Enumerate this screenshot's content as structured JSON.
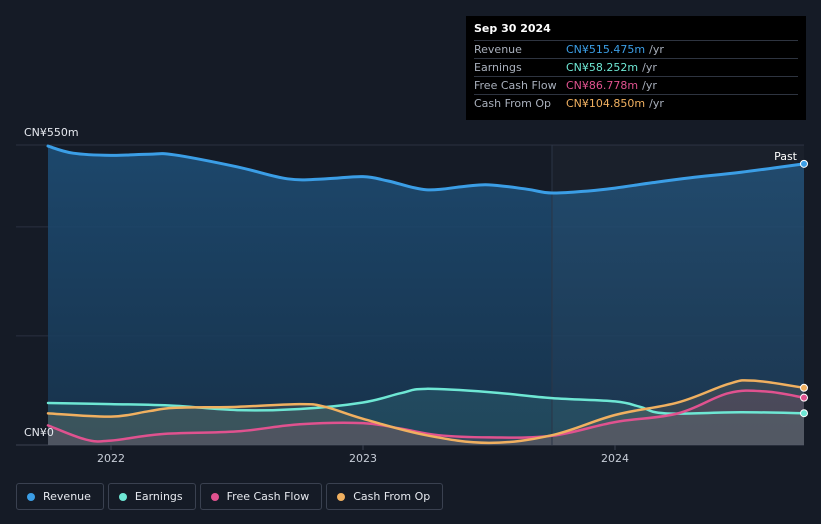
{
  "tooltip": {
    "date": "Sep 30 2024",
    "rows": [
      {
        "label": "Revenue",
        "value": "CN¥515.475m",
        "unit": "/yr",
        "color": "#3b9ee6"
      },
      {
        "label": "Earnings",
        "value": "CN¥58.252m",
        "unit": "/yr",
        "color": "#6ee7d4"
      },
      {
        "label": "Free Cash Flow",
        "value": "CN¥86.778m",
        "unit": "/yr",
        "color": "#e0528f"
      },
      {
        "label": "Cash From Op",
        "value": "CN¥104.850m",
        "unit": "/yr",
        "color": "#f0b060"
      }
    ]
  },
  "past_label": "Past",
  "legend": [
    {
      "label": "Revenue",
      "color": "#3b9ee6"
    },
    {
      "label": "Earnings",
      "color": "#6ee7d4"
    },
    {
      "label": "Free Cash Flow",
      "color": "#e0528f"
    },
    {
      "label": "Cash From Op",
      "color": "#f0b060"
    }
  ],
  "chart_data": {
    "type": "line",
    "y_tick_labels": [
      "CN¥550m",
      "CN¥0"
    ],
    "ylim": [
      0,
      550
    ],
    "x_tick_labels": [
      "2022",
      "2023",
      "2024"
    ],
    "xlim": [
      2021.75,
      2024.75
    ],
    "series": [
      {
        "name": "Revenue",
        "color": "#3b9ee6",
        "x": [
          2021.75,
          2021.85,
          2022.0,
          2022.15,
          2022.25,
          2022.5,
          2022.7,
          2022.85,
          2023.0,
          2023.1,
          2023.25,
          2023.4,
          2023.5,
          2023.65,
          2023.75,
          2023.9,
          2024.0,
          2024.15,
          2024.3,
          2024.5,
          2024.75
        ],
        "y": [
          548,
          535,
          531,
          533,
          532,
          510,
          488,
          488,
          492,
          484,
          468,
          474,
          477,
          469,
          462,
          466,
          471,
          481,
          490,
          500,
          515.475
        ]
      },
      {
        "name": "Earnings",
        "color": "#6ee7d4",
        "x": [
          2021.75,
          2022.0,
          2022.25,
          2022.5,
          2022.75,
          2023.0,
          2023.15,
          2023.25,
          2023.5,
          2023.75,
          2024.0,
          2024.1,
          2024.2,
          2024.5,
          2024.75
        ],
        "y": [
          77,
          75,
          72,
          64,
          66,
          78,
          95,
          103,
          97,
          86,
          80,
          70,
          58,
          60,
          58.252
        ]
      },
      {
        "name": "Free Cash Flow",
        "color": "#e0528f",
        "x": [
          2021.75,
          2021.9,
          2022.0,
          2022.2,
          2022.5,
          2022.75,
          2023.0,
          2023.15,
          2023.3,
          2023.5,
          2023.75,
          2024.0,
          2024.25,
          2024.45,
          2024.6,
          2024.75
        ],
        "y": [
          36,
          10,
          8,
          20,
          25,
          38,
          40,
          30,
          18,
          14,
          17,
          42,
          58,
          95,
          98,
          86.778
        ]
      },
      {
        "name": "Cash From Op",
        "color": "#f0b060",
        "x": [
          2021.75,
          2022.0,
          2022.15,
          2022.25,
          2022.5,
          2022.75,
          2022.85,
          2023.0,
          2023.25,
          2023.5,
          2023.75,
          2024.0,
          2024.25,
          2024.45,
          2024.55,
          2024.75
        ],
        "y": [
          58,
          52,
          62,
          68,
          70,
          75,
          70,
          48,
          18,
          4,
          18,
          55,
          78,
          112,
          118,
          104.85
        ]
      }
    ]
  }
}
